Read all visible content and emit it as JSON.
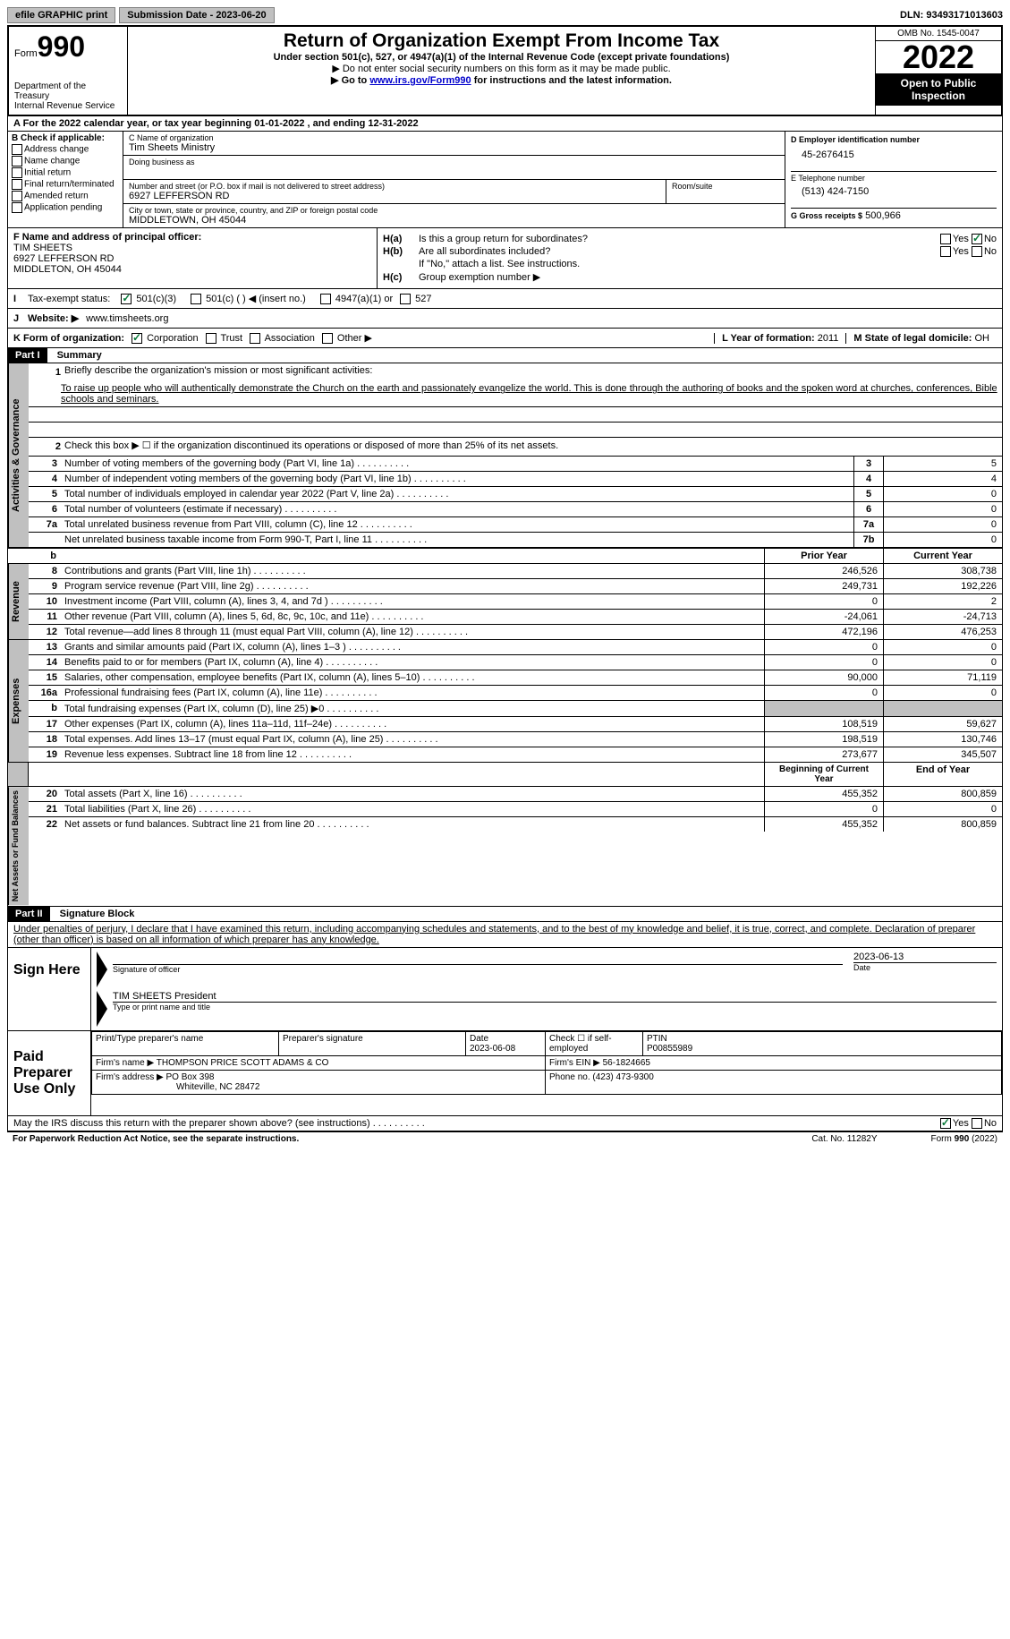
{
  "topbar": {
    "efile": "efile GRAPHIC print",
    "submission_label": "Submission Date - 2023-06-20",
    "dln": "DLN: 93493171013603"
  },
  "header": {
    "form_word": "Form",
    "form_num": "990",
    "dept": "Department of the Treasury",
    "irs": "Internal Revenue Service",
    "title": "Return of Organization Exempt From Income Tax",
    "subtitle": "Under section 501(c), 527, or 4947(a)(1) of the Internal Revenue Code (except private foundations)",
    "note1": "▶ Do not enter social security numbers on this form as it may be made public.",
    "note2_pre": "▶ Go to ",
    "note2_link": "www.irs.gov/Form990",
    "note2_post": " for instructions and the latest information.",
    "omb": "OMB No. 1545-0047",
    "year": "2022",
    "open": "Open to Public Inspection"
  },
  "row_a": "A For the 2022 calendar year, or tax year beginning 01-01-2022    , and ending 12-31-2022",
  "col_b": {
    "header": "B Check if applicable:",
    "items": [
      "Address change",
      "Name change",
      "Initial return",
      "Final return/terminated",
      "Amended return",
      "Application pending"
    ]
  },
  "col_c": {
    "name_label": "C Name of organization",
    "name": "Tim Sheets Ministry",
    "dba_label": "Doing business as",
    "street_label": "Number and street (or P.O. box if mail is not delivered to street address)",
    "street": "6927 LEFFERSON RD",
    "room_label": "Room/suite",
    "city_label": "City or town, state or province, country, and ZIP or foreign postal code",
    "city": "MIDDLETOWN, OH  45044"
  },
  "col_d": {
    "ein_label": "D Employer identification number",
    "ein": "45-2676415",
    "phone_label": "E Telephone number",
    "phone": "(513) 424-7150",
    "gross_label": "G Gross receipts $",
    "gross": "500,966"
  },
  "f": {
    "label": "F Name and address of principal officer:",
    "name": "TIM SHEETS",
    "street": "6927 LEFFERSON RD",
    "city": "MIDDLETON, OH  45044"
  },
  "h": {
    "ha": "Is this a group return for subordinates?",
    "hb": "Are all subordinates included?",
    "hb_note": "If \"No,\" attach a list. See instructions.",
    "hc": "Group exemption number ▶"
  },
  "i": {
    "label": "Tax-exempt status:",
    "opts": [
      "501(c)(3)",
      "501(c) (  ) ◀ (insert no.)",
      "4947(a)(1) or",
      "527"
    ]
  },
  "j": {
    "label": "Website: ▶",
    "value": "www.timsheets.org"
  },
  "k": {
    "label": "K Form of organization:",
    "opts": [
      "Corporation",
      "Trust",
      "Association",
      "Other ▶"
    ],
    "l_label": "L Year of formation:",
    "l_val": "2011",
    "m_label": "M State of legal domicile:",
    "m_val": "OH"
  },
  "part1": {
    "header": "Part I",
    "title": "Summary",
    "line1_label": "Briefly describe the organization's mission or most significant activities:",
    "mission": "To raise up people who will authentically demonstrate the Church on the earth and passionately evangelize the world. This is done through the authoring of books and the spoken word at churches, conferences, Bible schools and seminars.",
    "line2": "Check this box ▶ ☐ if the organization discontinued its operations or disposed of more than 25% of its net assets.",
    "gov_label": "Activities & Governance",
    "lines_gov": [
      {
        "num": "3",
        "desc": "Number of voting members of the governing body (Part VI, line 1a)",
        "box": "3",
        "val": "5"
      },
      {
        "num": "4",
        "desc": "Number of independent voting members of the governing body (Part VI, line 1b)",
        "box": "4",
        "val": "4"
      },
      {
        "num": "5",
        "desc": "Total number of individuals employed in calendar year 2022 (Part V, line 2a)",
        "box": "5",
        "val": "0"
      },
      {
        "num": "6",
        "desc": "Total number of volunteers (estimate if necessary)",
        "box": "6",
        "val": "0"
      },
      {
        "num": "7a",
        "desc": "Total unrelated business revenue from Part VIII, column (C), line 12",
        "box": "7a",
        "val": "0"
      },
      {
        "num": "",
        "desc": "Net unrelated business taxable income from Form 990-T, Part I, line 11",
        "box": "7b",
        "val": "0"
      }
    ],
    "rev_label": "Revenue",
    "prior_header": "Prior Year",
    "current_header": "Current Year",
    "lines_rev": [
      {
        "num": "8",
        "desc": "Contributions and grants (Part VIII, line 1h)",
        "prior": "246,526",
        "current": "308,738"
      },
      {
        "num": "9",
        "desc": "Program service revenue (Part VIII, line 2g)",
        "prior": "249,731",
        "current": "192,226"
      },
      {
        "num": "10",
        "desc": "Investment income (Part VIII, column (A), lines 3, 4, and 7d )",
        "prior": "0",
        "current": "2"
      },
      {
        "num": "11",
        "desc": "Other revenue (Part VIII, column (A), lines 5, 6d, 8c, 9c, 10c, and 11e)",
        "prior": "-24,061",
        "current": "-24,713"
      },
      {
        "num": "12",
        "desc": "Total revenue—add lines 8 through 11 (must equal Part VIII, column (A), line 12)",
        "prior": "472,196",
        "current": "476,253"
      }
    ],
    "exp_label": "Expenses",
    "lines_exp": [
      {
        "num": "13",
        "desc": "Grants and similar amounts paid (Part IX, column (A), lines 1–3 )",
        "prior": "0",
        "current": "0"
      },
      {
        "num": "14",
        "desc": "Benefits paid to or for members (Part IX, column (A), line 4)",
        "prior": "0",
        "current": "0"
      },
      {
        "num": "15",
        "desc": "Salaries, other compensation, employee benefits (Part IX, column (A), lines 5–10)",
        "prior": "90,000",
        "current": "71,119"
      },
      {
        "num": "16a",
        "desc": "Professional fundraising fees (Part IX, column (A), line 11e)",
        "prior": "0",
        "current": "0"
      },
      {
        "num": "b",
        "desc": "Total fundraising expenses (Part IX, column (D), line 25) ▶0",
        "prior": "grey",
        "current": "grey"
      },
      {
        "num": "17",
        "desc": "Other expenses (Part IX, column (A), lines 11a–11d, 11f–24e)",
        "prior": "108,519",
        "current": "59,627"
      },
      {
        "num": "18",
        "desc": "Total expenses. Add lines 13–17 (must equal Part IX, column (A), line 25)",
        "prior": "198,519",
        "current": "130,746"
      },
      {
        "num": "19",
        "desc": "Revenue less expenses. Subtract line 18 from line 12",
        "prior": "273,677",
        "current": "345,507"
      }
    ],
    "net_label": "Net Assets or Fund Balances",
    "begin_header": "Beginning of Current Year",
    "end_header": "End of Year",
    "lines_net": [
      {
        "num": "20",
        "desc": "Total assets (Part X, line 16)",
        "prior": "455,352",
        "current": "800,859"
      },
      {
        "num": "21",
        "desc": "Total liabilities (Part X, line 26)",
        "prior": "0",
        "current": "0"
      },
      {
        "num": "22",
        "desc": "Net assets or fund balances. Subtract line 21 from line 20",
        "prior": "455,352",
        "current": "800,859"
      }
    ]
  },
  "part2": {
    "header": "Part II",
    "title": "Signature Block",
    "declaration": "Under penalties of perjury, I declare that I have examined this return, including accompanying schedules and statements, and to the best of my knowledge and belief, it is true, correct, and complete. Declaration of preparer (other than officer) is based on all information of which preparer has any knowledge.",
    "sign_here": "Sign Here",
    "sig_officer": "Signature of officer",
    "sig_date": "2023-06-13",
    "officer_name": "TIM SHEETS President",
    "type_name": "Type or print name and title",
    "paid": "Paid Preparer Use Only",
    "prep_name_label": "Print/Type preparer's name",
    "prep_sig_label": "Preparer's signature",
    "prep_date_label": "Date",
    "prep_date": "2023-06-08",
    "check_self": "Check ☐ if self-employed",
    "ptin_label": "PTIN",
    "ptin": "P00855989",
    "firm_name_label": "Firm's name    ▶",
    "firm_name": "THOMPSON PRICE SCOTT ADAMS & CO",
    "firm_ein_label": "Firm's EIN ▶",
    "firm_ein": "56-1824665",
    "firm_addr_label": "Firm's address ▶",
    "firm_addr1": "PO Box 398",
    "firm_addr2": "Whiteville, NC  28472",
    "firm_phone_label": "Phone no.",
    "firm_phone": "(423) 473-9300",
    "discuss": "May the IRS discuss this return with the preparer shown above? (see instructions)"
  },
  "footer": {
    "paperwork": "For Paperwork Reduction Act Notice, see the separate instructions.",
    "cat": "Cat. No. 11282Y",
    "form": "Form 990 (2022)"
  }
}
